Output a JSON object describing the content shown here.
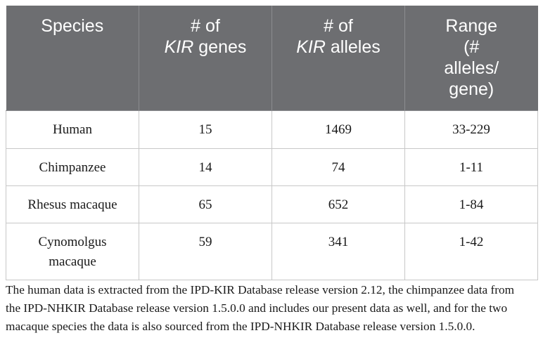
{
  "table": {
    "headers": [
      {
        "lines": [
          "Species"
        ]
      },
      {
        "lines": [
          "# of"
        ],
        "italic": "KIR",
        "tail": " genes"
      },
      {
        "lines": [
          "# of"
        ],
        "italic": "KIR",
        "tail": " alleles"
      },
      {
        "lines": [
          "Range",
          "(#",
          "alleles/",
          "gene)"
        ]
      }
    ],
    "rows": [
      {
        "species": [
          "Human"
        ],
        "genes": "15",
        "alleles": "1469",
        "range": "33-229"
      },
      {
        "species": [
          "Chimpanzee"
        ],
        "genes": "14",
        "alleles": "74",
        "range": "1-11"
      },
      {
        "species": [
          "Rhesus macaque"
        ],
        "genes": "65",
        "alleles": "652",
        "range": "1-84"
      },
      {
        "species": [
          "Cynomolgus",
          "macaque"
        ],
        "genes": "59",
        "alleles": "341",
        "range": "1-42"
      }
    ]
  },
  "footnote": "The human data is extracted from the IPD-KIR Database release version 2.12, the chimpanzee data from the IPD-NHKIR Database release version 1.5.0.0 and includes our present data as well, and for the two macaque species the data is also sourced from the IPD-NHKIR Database release version 1.5.0.0."
}
